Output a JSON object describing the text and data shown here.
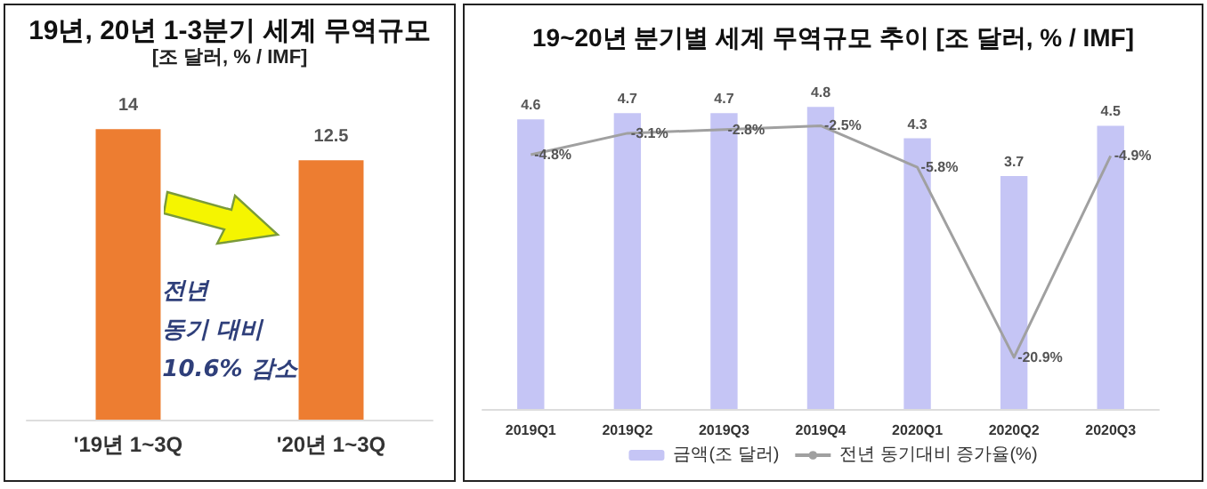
{
  "chart_data": [
    {
      "type": "bar",
      "title": "19년, 20년 1-3분기 세계 무역규모",
      "subtitle": "[조 달러, % / IMF]",
      "categories": [
        "'19년 1~3Q",
        "'20년 1~3Q"
      ],
      "values": [
        14,
        12.5
      ],
      "color": "#ed7d31",
      "data_labels": true,
      "tick_labels": "x",
      "annotations": [
        "전년\n동기 대비\n10.6% 감소"
      ]
    },
    {
      "type": "bar",
      "title": "19~20년 분기별 세계 무역규모 추이 [조 달러, % / IMF]",
      "categories": [
        "2019Q1",
        "2019Q2",
        "2019Q3",
        "2019Q4",
        "2020Q1",
        "2020Q2",
        "2020Q3"
      ],
      "series": [
        {
          "name": "금액(조 달러)",
          "color": "#c5c5f5",
          "values": [
            4.6,
            4.7,
            4.7,
            4.8,
            4.3,
            3.7,
            4.5
          ]
        },
        {
          "name": "전년 동기대비 증가율(%)",
          "type": "line",
          "axis": "y2",
          "color": "#a0a0a0",
          "marker": "none",
          "value_labels": [
            "-4.8%",
            "-3.1%",
            "-2.8%",
            "-2.5%",
            "-5.8%",
            "-20.9%",
            "-4.9%"
          ],
          "values": [
            -4.8,
            -3.1,
            -2.8,
            -2.5,
            -5.8,
            -20.9,
            -4.9
          ]
        }
      ],
      "data_labels": true,
      "tick_labels": "x",
      "legend": "bottom"
    }
  ]
}
